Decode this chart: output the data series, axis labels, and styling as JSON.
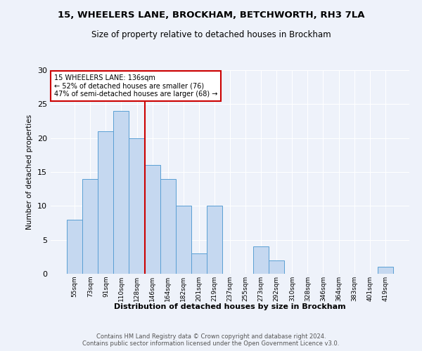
{
  "title1": "15, WHEELERS LANE, BROCKHAM, BETCHWORTH, RH3 7LA",
  "title2": "Size of property relative to detached houses in Brockham",
  "xlabel": "Distribution of detached houses by size in Brockham",
  "ylabel": "Number of detached properties",
  "categories": [
    "55sqm",
    "73sqm",
    "91sqm",
    "110sqm",
    "128sqm",
    "146sqm",
    "164sqm",
    "182sqm",
    "201sqm",
    "219sqm",
    "237sqm",
    "255sqm",
    "273sqm",
    "292sqm",
    "310sqm",
    "328sqm",
    "346sqm",
    "364sqm",
    "383sqm",
    "401sqm",
    "419sqm"
  ],
  "values": [
    8,
    14,
    21,
    24,
    20,
    16,
    14,
    10,
    3,
    10,
    0,
    0,
    4,
    2,
    0,
    0,
    0,
    0,
    0,
    0,
    1
  ],
  "bar_color": "#c5d8f0",
  "bar_edge_color": "#5a9fd4",
  "vline_x": 4.5,
  "vline_color": "#cc0000",
  "annotation_text": "15 WHEELERS LANE: 136sqm\n← 52% of detached houses are smaller (76)\n47% of semi-detached houses are larger (68) →",
  "annotation_box_color": "#ffffff",
  "annotation_box_edge": "#cc0000",
  "ylim": [
    0,
    30
  ],
  "yticks": [
    0,
    5,
    10,
    15,
    20,
    25,
    30
  ],
  "footer1": "Contains HM Land Registry data © Crown copyright and database right 2024.",
  "footer2": "Contains public sector information licensed under the Open Government Licence v3.0.",
  "bg_color": "#eef2fa"
}
